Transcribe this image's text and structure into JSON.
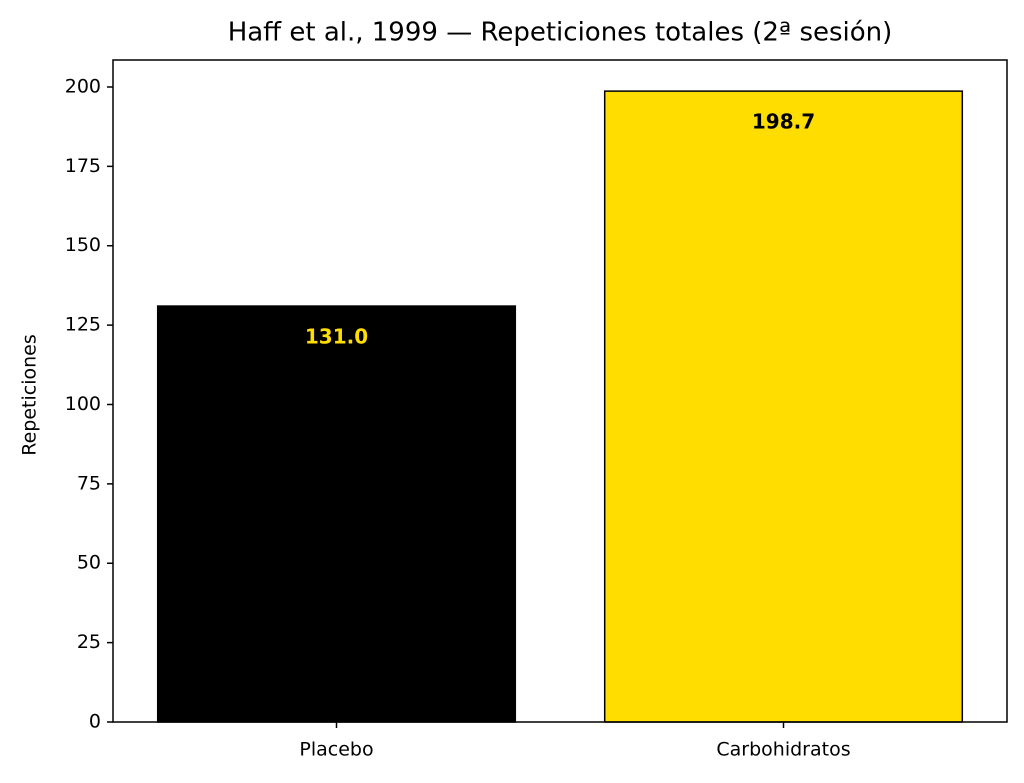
{
  "chart_data": {
    "type": "bar",
    "title": "Haff et al., 1999 — Repeticiones totales (2ª sesión)",
    "ylabel": "Repeticiones",
    "categories": [
      "Placebo",
      "Carbohidratos"
    ],
    "values": [
      131,
      198.7
    ],
    "value_labels": [
      "131.0",
      "198.7"
    ],
    "colors": [
      "#000000",
      "#FFDD00"
    ],
    "value_label_colors": [
      "#FFDD00",
      "#000000"
    ],
    "edgecolor": "#000000",
    "ylim": [
      0,
      208.5
    ],
    "yticks": [
      0,
      25,
      50,
      75,
      100,
      125,
      150,
      175,
      200
    ],
    "grid": false
  }
}
